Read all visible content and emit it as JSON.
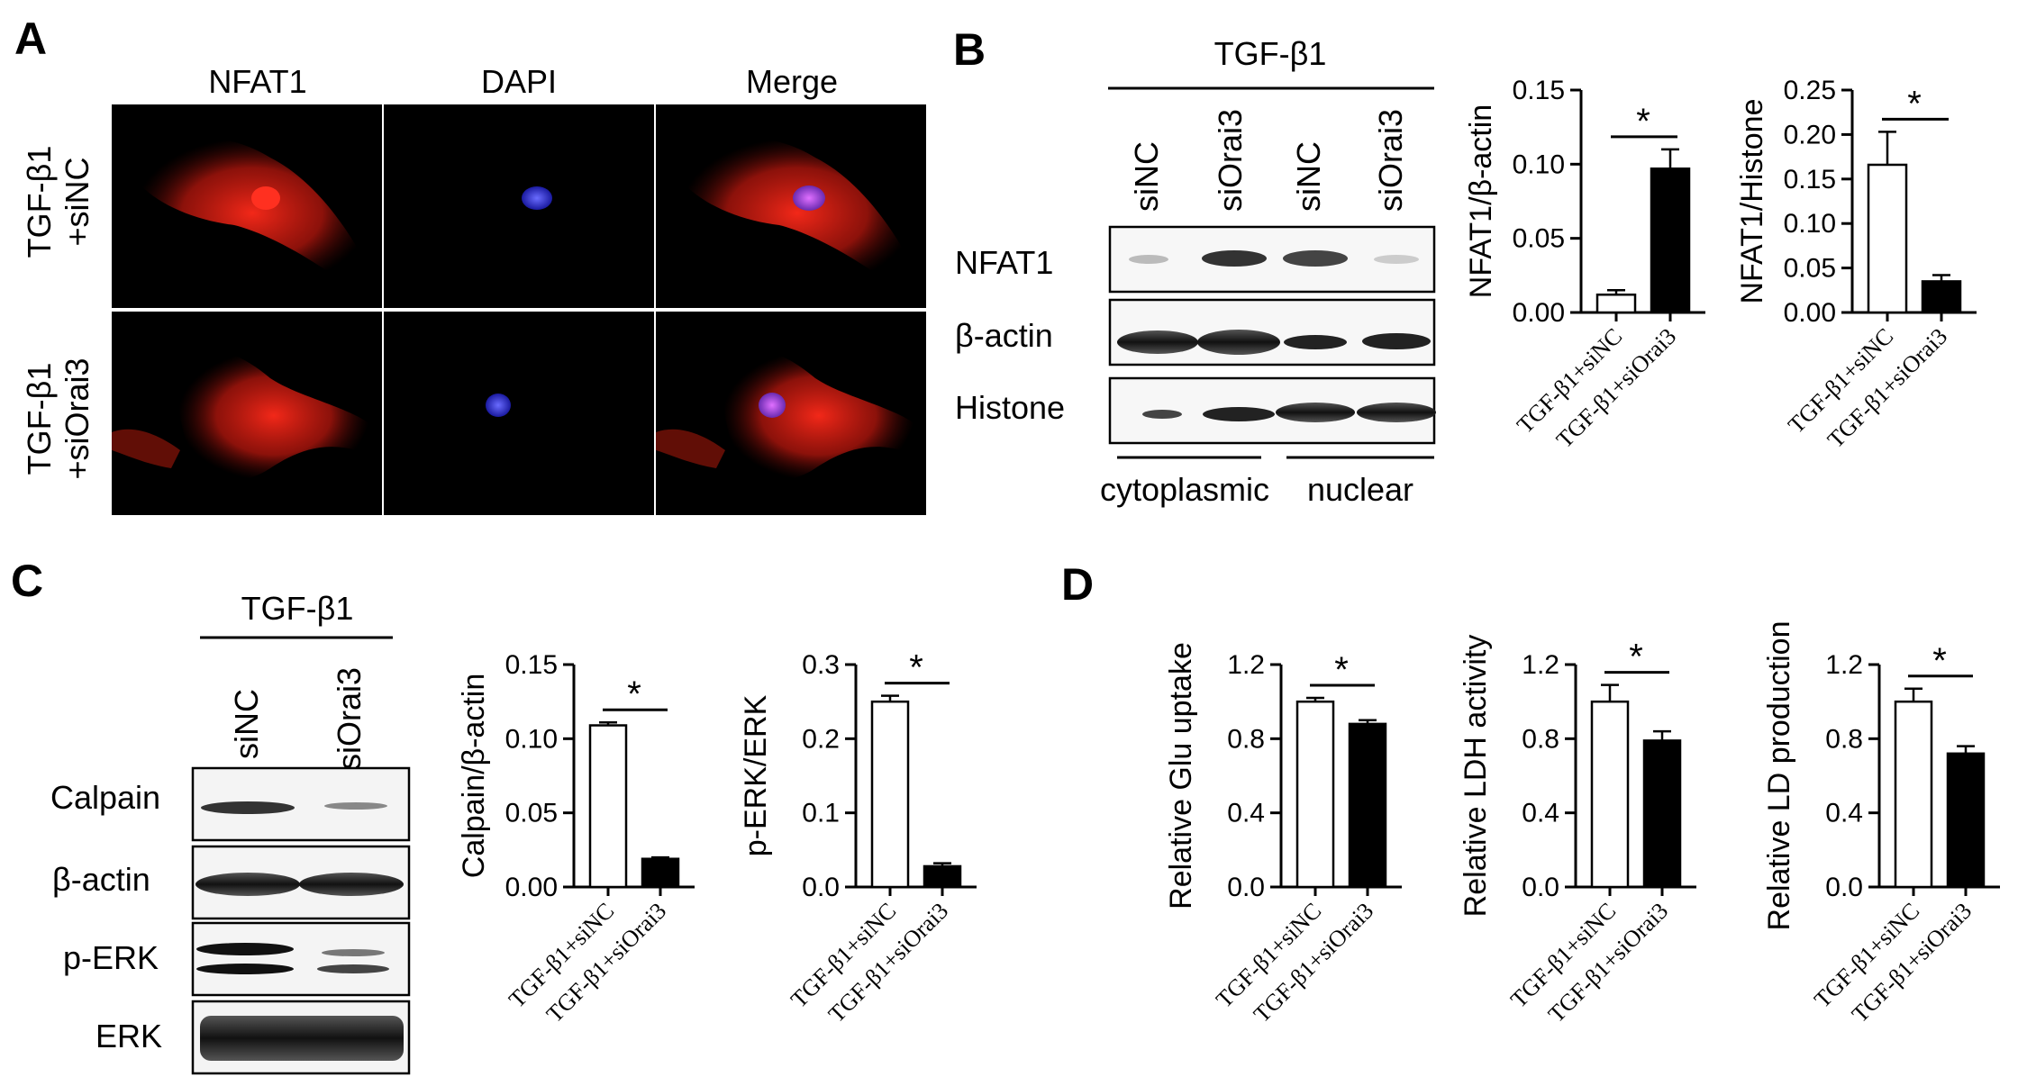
{
  "panel_a": {
    "letter": "A",
    "columns": [
      "NFAT1",
      "DAPI",
      "Merge"
    ],
    "rows": [
      {
        "line1": "TGF-β1",
        "line2": "+siNC"
      },
      {
        "line1": "TGF-β1",
        "line2": "+siOrai3"
      }
    ]
  },
  "panel_b": {
    "letter": "B",
    "treatment": "TGF-β1",
    "lanes": [
      "siNC",
      "siOrai3",
      "siNC",
      "siOrai3"
    ],
    "bands": [
      "NFAT1",
      "β-actin",
      "Histone"
    ],
    "fractions": [
      "cytoplasmic",
      "nuclear"
    ]
  },
  "panel_c": {
    "letter": "C",
    "treatment": "TGF-β1",
    "lanes": [
      "siNC",
      "siOrai3"
    ],
    "bands": [
      "Calpain",
      "β-actin",
      "p-ERK",
      "ERK"
    ]
  },
  "panel_d": {
    "letter": "D"
  },
  "significance": "*",
  "chart_data": [
    {
      "id": "b1",
      "type": "bar",
      "categories": [
        "TGF-β1+siNC",
        "TGF-β1+siOrai3"
      ],
      "values": [
        0.012,
        0.097
      ],
      "errors": [
        0.003,
        0.013
      ],
      "ylabel": "NFAT1/β-actin",
      "ylim": [
        0,
        0.15
      ],
      "ticks": [
        "0.00",
        "0.05",
        "0.10",
        "0.15"
      ],
      "fills": [
        "#ffffff",
        "#000000"
      ]
    },
    {
      "id": "b2",
      "type": "bar",
      "categories": [
        "TGF-β1+siNC",
        "TGF-β1+siOrai3"
      ],
      "values": [
        0.166,
        0.035
      ],
      "errors": [
        0.037,
        0.007
      ],
      "ylabel": "NFAT1/Histone",
      "ylim": [
        0,
        0.25
      ],
      "ticks": [
        "0.00",
        "0.05",
        "0.10",
        "0.15",
        "0.20",
        "0.25"
      ],
      "fills": [
        "#ffffff",
        "#000000"
      ]
    },
    {
      "id": "c1",
      "type": "bar",
      "categories": [
        "TGF-β1+siNC",
        "TGF-β1+siOrai3"
      ],
      "values": [
        0.109,
        0.019
      ],
      "errors": [
        0.002,
        0.001
      ],
      "ylabel": "Calpain/β-actin",
      "ylim": [
        0,
        0.15
      ],
      "ticks": [
        "0.00",
        "0.05",
        "0.10",
        "0.15"
      ],
      "fills": [
        "#ffffff",
        "#000000"
      ]
    },
    {
      "id": "c2",
      "type": "bar",
      "categories": [
        "TGF-β1+siNC",
        "TGF-β1+siOrai3"
      ],
      "values": [
        0.25,
        0.028
      ],
      "errors": [
        0.008,
        0.004
      ],
      "ylabel": "p-ERK/ERK",
      "ylim": [
        0,
        0.3
      ],
      "ticks": [
        "0.0",
        "0.1",
        "0.2",
        "0.3"
      ],
      "fills": [
        "#ffffff",
        "#000000"
      ]
    },
    {
      "id": "d1",
      "type": "bar",
      "categories": [
        "TGF-β1+siNC",
        "TGF-β1+siOrai3"
      ],
      "values": [
        1.0,
        0.88
      ],
      "errors": [
        0.02,
        0.02
      ],
      "ylabel": "Relative Glu uptake",
      "ylim": [
        0,
        1.2
      ],
      "ticks": [
        "0.0",
        "0.4",
        "0.8",
        "1.2"
      ],
      "fills": [
        "#ffffff",
        "#000000"
      ]
    },
    {
      "id": "d2",
      "type": "bar",
      "categories": [
        "TGF-β1+siNC",
        "TGF-β1+siOrai3"
      ],
      "values": [
        1.0,
        0.79
      ],
      "errors": [
        0.09,
        0.05
      ],
      "ylabel": "Relative LDH activity",
      "ylim": [
        0,
        1.2
      ],
      "ticks": [
        "0.0",
        "0.4",
        "0.8",
        "1.2"
      ],
      "fills": [
        "#ffffff",
        "#000000"
      ]
    },
    {
      "id": "d3",
      "type": "bar",
      "categories": [
        "TGF-β1+siNC",
        "TGF-β1+siOrai3"
      ],
      "values": [
        1.0,
        0.72
      ],
      "errors": [
        0.07,
        0.04
      ],
      "ylabel": "Relative LD production",
      "ylim": [
        0,
        1.2
      ],
      "ticks": [
        "0.0",
        "0.4",
        "0.8",
        "1.2"
      ],
      "fills": [
        "#ffffff",
        "#000000"
      ]
    }
  ]
}
